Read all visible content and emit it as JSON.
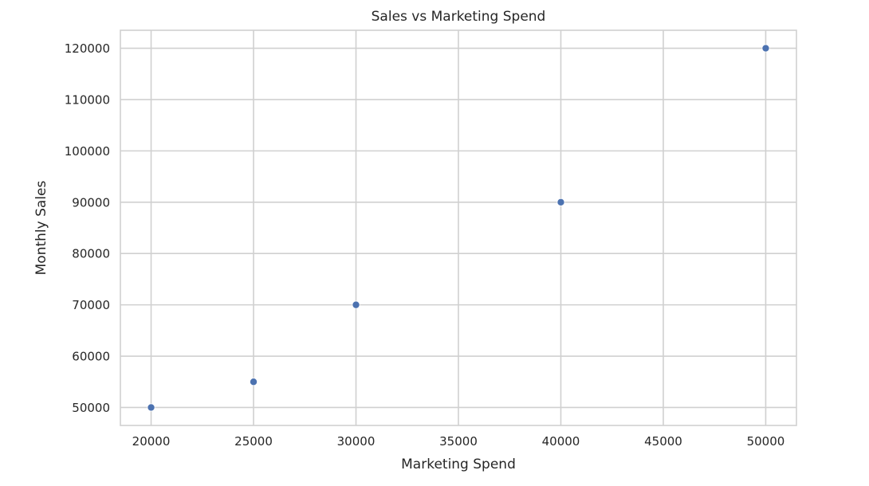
{
  "chart_data": {
    "type": "scatter",
    "title": "Sales vs Marketing Spend",
    "xlabel": "Marketing Spend",
    "ylabel": "Monthly Sales",
    "x_ticks": [
      20000,
      25000,
      30000,
      35000,
      40000,
      45000,
      50000
    ],
    "y_ticks": [
      50000,
      60000,
      70000,
      80000,
      90000,
      100000,
      110000,
      120000
    ],
    "xlim": [
      18500,
      51500
    ],
    "ylim": [
      46500,
      123500
    ],
    "grid": true,
    "series": [
      {
        "color": "#4c72b0",
        "points": [
          {
            "x": 20000,
            "y": 50000
          },
          {
            "x": 25000,
            "y": 55000
          },
          {
            "x": 30000,
            "y": 70000
          },
          {
            "x": 40000,
            "y": 90000
          },
          {
            "x": 50000,
            "y": 120000
          }
        ]
      }
    ]
  }
}
